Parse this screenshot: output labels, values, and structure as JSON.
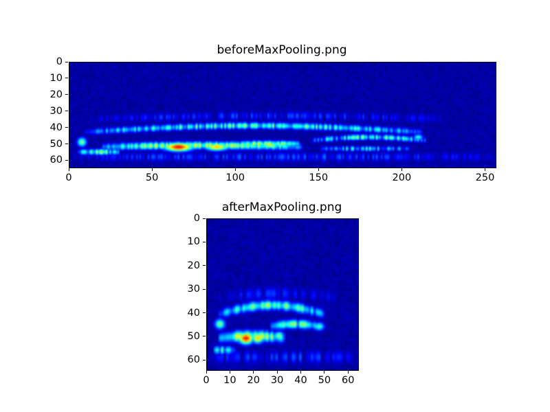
{
  "style": {
    "page_background": "#ffffff",
    "frame_color": "#000000",
    "text_color": "#000000",
    "heatmap_background_navy": "#000080"
  },
  "chart_data": [
    {
      "type": "heatmap",
      "title": "beforeMaxPooling.png",
      "colormap": "jet",
      "data_width": 256,
      "data_height": 64,
      "x_range": [
        0,
        256
      ],
      "y_range": [
        0,
        64
      ],
      "x_ticks": [
        0,
        50,
        100,
        150,
        200,
        250
      ],
      "y_ticks": [
        0,
        10,
        20,
        30,
        40,
        50,
        60
      ],
      "background_level": 0.01,
      "noise_level": 0.05,
      "noise_seed": 7,
      "streaks": [
        {
          "x0": 8,
          "x1": 212,
          "y": 42,
          "curve": -4,
          "sy": 1.4,
          "amp": 0.4,
          "jitter": 0.45
        },
        {
          "x0": 18,
          "x1": 140,
          "y": 51,
          "curve": -1,
          "sy": 1.6,
          "amp": 0.5,
          "jitter": 0.3
        },
        {
          "x0": 100,
          "x1": 138,
          "y": 49,
          "curve": 0,
          "sy": 1.3,
          "amp": 0.5,
          "jitter": 0.35
        },
        {
          "x0": 4,
          "x1": 30,
          "y": 54,
          "curve": 0,
          "sy": 1.3,
          "amp": 0.42,
          "jitter": 0.4
        },
        {
          "x0": 145,
          "x1": 214,
          "y": 47,
          "curve": -2,
          "sy": 1.2,
          "amp": 0.36,
          "jitter": 0.6
        },
        {
          "x0": 150,
          "x1": 205,
          "y": 52,
          "curve": 0,
          "sy": 1.1,
          "amp": 0.28,
          "jitter": 0.7
        },
        {
          "x0": 0,
          "x1": 255,
          "y": 57,
          "curve": 0,
          "sy": 2.0,
          "amp": 0.14,
          "jitter": 0.8
        },
        {
          "x0": 10,
          "x1": 230,
          "y": 34,
          "curve": -2,
          "sy": 2.0,
          "amp": 0.12,
          "jitter": 0.85
        }
      ],
      "blobs": [
        {
          "x": 65,
          "y": 51,
          "sx": 6.0,
          "sy": 1.8,
          "amp": 0.88
        },
        {
          "x": 88,
          "y": 51,
          "sx": 5.0,
          "sy": 1.6,
          "amp": 0.68
        },
        {
          "x": 120,
          "y": 50,
          "sx": 4.0,
          "sy": 1.4,
          "amp": 0.55
        },
        {
          "x": 7,
          "y": 48,
          "sx": 2.0,
          "sy": 2.0,
          "amp": 0.5
        },
        {
          "x": 209,
          "y": 45,
          "sx": 2.0,
          "sy": 1.2,
          "amp": 0.42
        }
      ]
    },
    {
      "type": "heatmap",
      "title": "afterMaxPooling.png",
      "colormap": "jet",
      "data_width": 64,
      "data_height": 64,
      "x_range": [
        0,
        64
      ],
      "y_range": [
        0,
        64
      ],
      "x_ticks": [
        0,
        10,
        20,
        30,
        40,
        50,
        60
      ],
      "y_ticks": [
        0,
        10,
        20,
        30,
        40,
        50,
        60
      ],
      "background_level": 0.01,
      "noise_level": 0.05,
      "noise_seed": 21,
      "streaks": [
        {
          "x0": 4,
          "x1": 50,
          "y": 40,
          "curve": -4,
          "sy": 1.4,
          "amp": 0.42,
          "jitter": 0.4
        },
        {
          "x0": 4,
          "x1": 33,
          "y": 50,
          "curve": -1,
          "sy": 1.6,
          "amp": 0.52,
          "jitter": 0.3
        },
        {
          "x0": 26,
          "x1": 48,
          "y": 45,
          "curve": -1,
          "sy": 1.3,
          "amp": 0.44,
          "jitter": 0.4
        },
        {
          "x0": 2,
          "x1": 12,
          "y": 55,
          "curve": 0,
          "sy": 1.2,
          "amp": 0.36,
          "jitter": 0.4
        },
        {
          "x0": 0,
          "x1": 63,
          "y": 58,
          "curve": 0,
          "sy": 2.0,
          "amp": 0.13,
          "jitter": 0.8
        },
        {
          "x0": 3,
          "x1": 56,
          "y": 33,
          "curve": -2,
          "sy": 2.0,
          "amp": 0.11,
          "jitter": 0.85
        }
      ],
      "blobs": [
        {
          "x": 16,
          "y": 50,
          "sx": 2.2,
          "sy": 1.7,
          "amp": 0.88
        },
        {
          "x": 21,
          "y": 50,
          "sx": 1.8,
          "sy": 1.5,
          "amp": 0.68
        },
        {
          "x": 30,
          "y": 49,
          "sx": 1.5,
          "sy": 1.3,
          "amp": 0.52
        },
        {
          "x": 5,
          "y": 44,
          "sx": 1.5,
          "sy": 1.5,
          "amp": 0.52
        },
        {
          "x": 47,
          "y": 45,
          "sx": 1.5,
          "sy": 1.2,
          "amp": 0.46
        }
      ]
    }
  ]
}
